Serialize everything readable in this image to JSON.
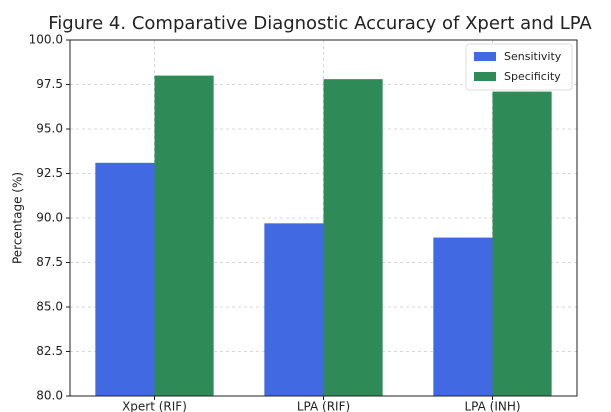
{
  "chart_data": {
    "type": "bar",
    "title": "Figure 4. Comparative Diagnostic Accuracy of Xpert and LPA",
    "ylabel": "Percentage (%)",
    "categories": [
      "Xpert (RIF)",
      "LPA (RIF)",
      "LPA (INH)"
    ],
    "series": [
      {
        "name": "Sensitivity",
        "color": "#4169e1",
        "values": [
          93.1,
          89.7,
          88.9
        ]
      },
      {
        "name": "Specificity",
        "color": "#2e8b57",
        "values": [
          98.0,
          97.8,
          97.1
        ]
      }
    ],
    "ylim": [
      80,
      100
    ],
    "yticks": [
      {
        "value": 80,
        "label": "80.0"
      },
      82.5,
      {
        "value": 85,
        "label": "85.0"
      },
      87.5,
      {
        "value": 90,
        "label": "90.0"
      },
      92.5,
      {
        "value": 95,
        "label": "95.0"
      },
      97.5,
      {
        "value": 100,
        "label": "100.0"
      }
    ],
    "grid": true,
    "legend": "upper right"
  }
}
